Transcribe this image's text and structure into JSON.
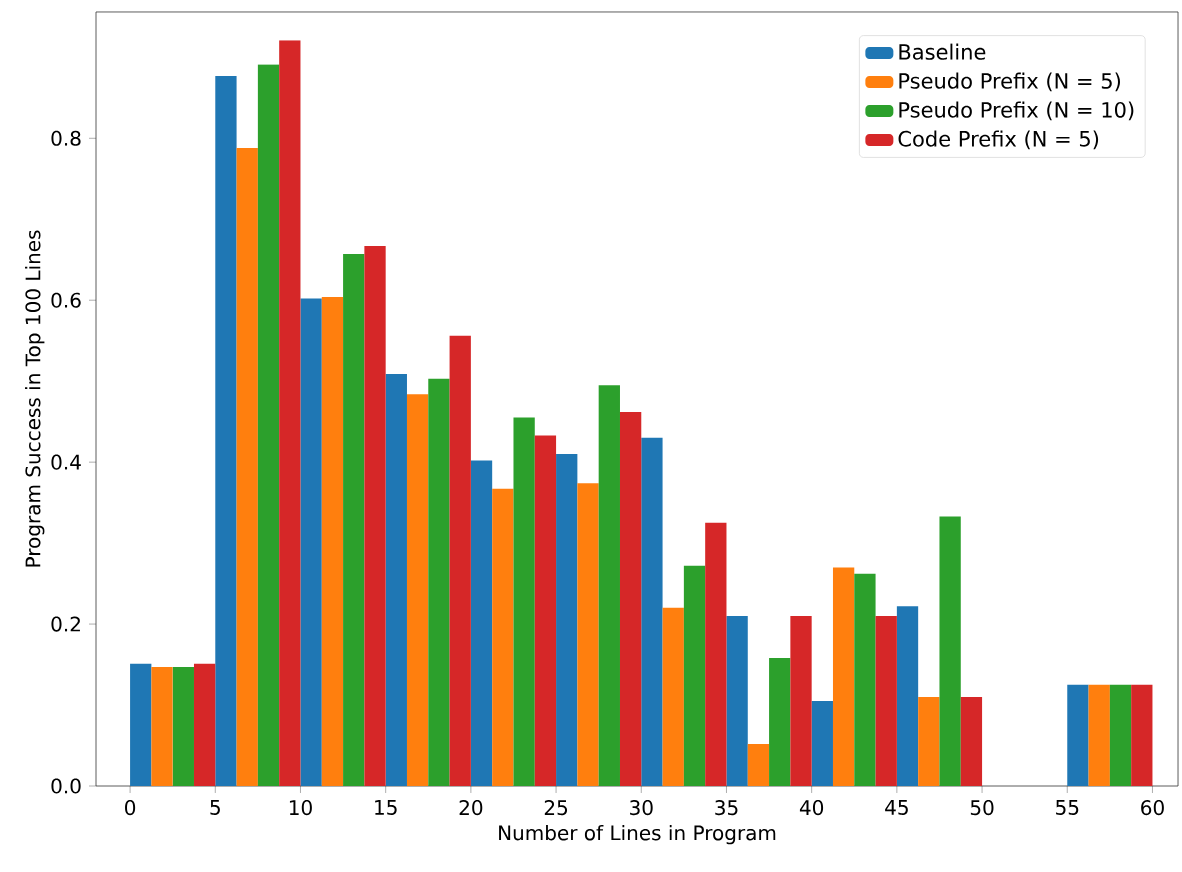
{
  "chart_data": {
    "type": "bar",
    "xlabel": "Number of Lines in Program",
    "ylabel": "Program Success in Top 100 Lines",
    "x": [
      2.5,
      7.5,
      12.5,
      17.5,
      22.5,
      27.5,
      32.5,
      37.5,
      42.5,
      47.5,
      52.5,
      57.5
    ],
    "series": [
      {
        "name": "Baseline",
        "color": "#1f77b4",
        "values": [
          0.151,
          0.877,
          0.602,
          0.509,
          0.402,
          0.41,
          0.43,
          0.21,
          0.105,
          0.222,
          null,
          0.125
        ]
      },
      {
        "name": "Pseudo Prefix (N = 5)",
        "color": "#ff7f0e",
        "values": [
          0.147,
          0.788,
          0.604,
          0.484,
          0.367,
          0.374,
          0.22,
          0.052,
          0.27,
          0.11,
          null,
          0.125
        ]
      },
      {
        "name": "Pseudo Prefix (N = 10)",
        "color": "#2ca02c",
        "values": [
          0.147,
          0.891,
          0.657,
          0.503,
          0.455,
          0.495,
          0.272,
          0.158,
          0.262,
          0.333,
          null,
          0.125
        ]
      },
      {
        "name": "Code Prefix (N = 5)",
        "color": "#d62728",
        "values": [
          0.151,
          0.921,
          0.667,
          0.556,
          0.433,
          0.462,
          0.325,
          0.21,
          0.21,
          0.11,
          null,
          0.125
        ]
      }
    ],
    "xlim": [
      -2,
      61.5
    ],
    "ylim": [
      0,
      0.956
    ],
    "xticks": [
      0,
      5,
      10,
      15,
      20,
      25,
      30,
      35,
      40,
      45,
      50,
      55,
      60
    ],
    "yticks": [
      {
        "value": 0,
        "label": "0.0"
      },
      {
        "value": 0.2,
        "label": "0.2"
      },
      {
        "value": 0.4,
        "label": "0.4"
      },
      {
        "value": 0.6,
        "label": "0.6"
      },
      {
        "value": 0.8,
        "label": "0.8"
      }
    ],
    "legend": "top right",
    "grid": false
  }
}
